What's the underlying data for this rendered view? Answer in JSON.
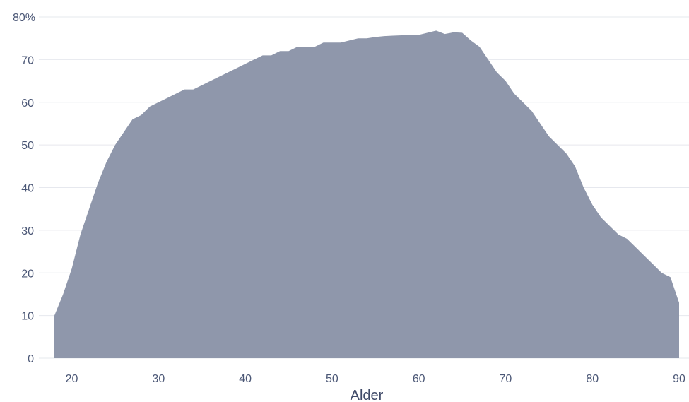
{
  "chart_data": {
    "type": "area",
    "title": "",
    "xlabel": "Alder",
    "ylabel": "",
    "xlim": [
      18,
      90
    ],
    "ylim": [
      0,
      80
    ],
    "x_ticks": [
      20,
      30,
      40,
      50,
      60,
      70,
      80,
      90
    ],
    "y_ticks": [
      0,
      10,
      20,
      30,
      40,
      50,
      60,
      70,
      80
    ],
    "y_tick_labels": [
      "0",
      "10",
      "20",
      "30",
      "40",
      "50",
      "60",
      "70",
      "80%"
    ],
    "grid": "horizontal",
    "legend": "none",
    "series": [
      {
        "x": [
          18,
          19,
          20,
          21,
          22,
          23,
          24,
          25,
          26,
          27,
          28,
          29,
          30,
          31,
          32,
          33,
          34,
          35,
          36,
          37,
          38,
          39,
          40,
          41,
          42,
          43,
          44,
          45,
          46,
          47,
          48,
          49,
          50,
          51,
          52,
          53,
          54,
          55,
          56,
          57,
          58,
          59,
          60,
          61,
          62,
          63,
          64,
          65,
          66,
          67,
          68,
          69,
          70,
          71,
          72,
          73,
          74,
          75,
          76,
          77,
          78,
          79,
          80,
          81,
          82,
          83,
          84,
          85,
          86,
          87,
          88,
          89,
          90
        ],
        "values": [
          10,
          15,
          21,
          29,
          35,
          41,
          46,
          50,
          53,
          56,
          57,
          59,
          60,
          61,
          62,
          63,
          63,
          64,
          65,
          66,
          67,
          68,
          69,
          70,
          71,
          71,
          72,
          72,
          73,
          73,
          73,
          74,
          74,
          74,
          74.5,
          75,
          75,
          75.3,
          75.5,
          75.6,
          75.7,
          75.8,
          75.8,
          76.3,
          76.8,
          76,
          76.4,
          76.3,
          74.5,
          73,
          70,
          67,
          65,
          62,
          60,
          58,
          55,
          52,
          50,
          48,
          45,
          40,
          36,
          33,
          31,
          29,
          28,
          26,
          24,
          22,
          20,
          19,
          13
        ]
      }
    ]
  },
  "colors": {
    "area_fill": "#8f97ab",
    "grid": "#e6e8ee",
    "tick_text": "#4b5776",
    "axis_title": "#3f4a68",
    "background": "#ffffff"
  }
}
